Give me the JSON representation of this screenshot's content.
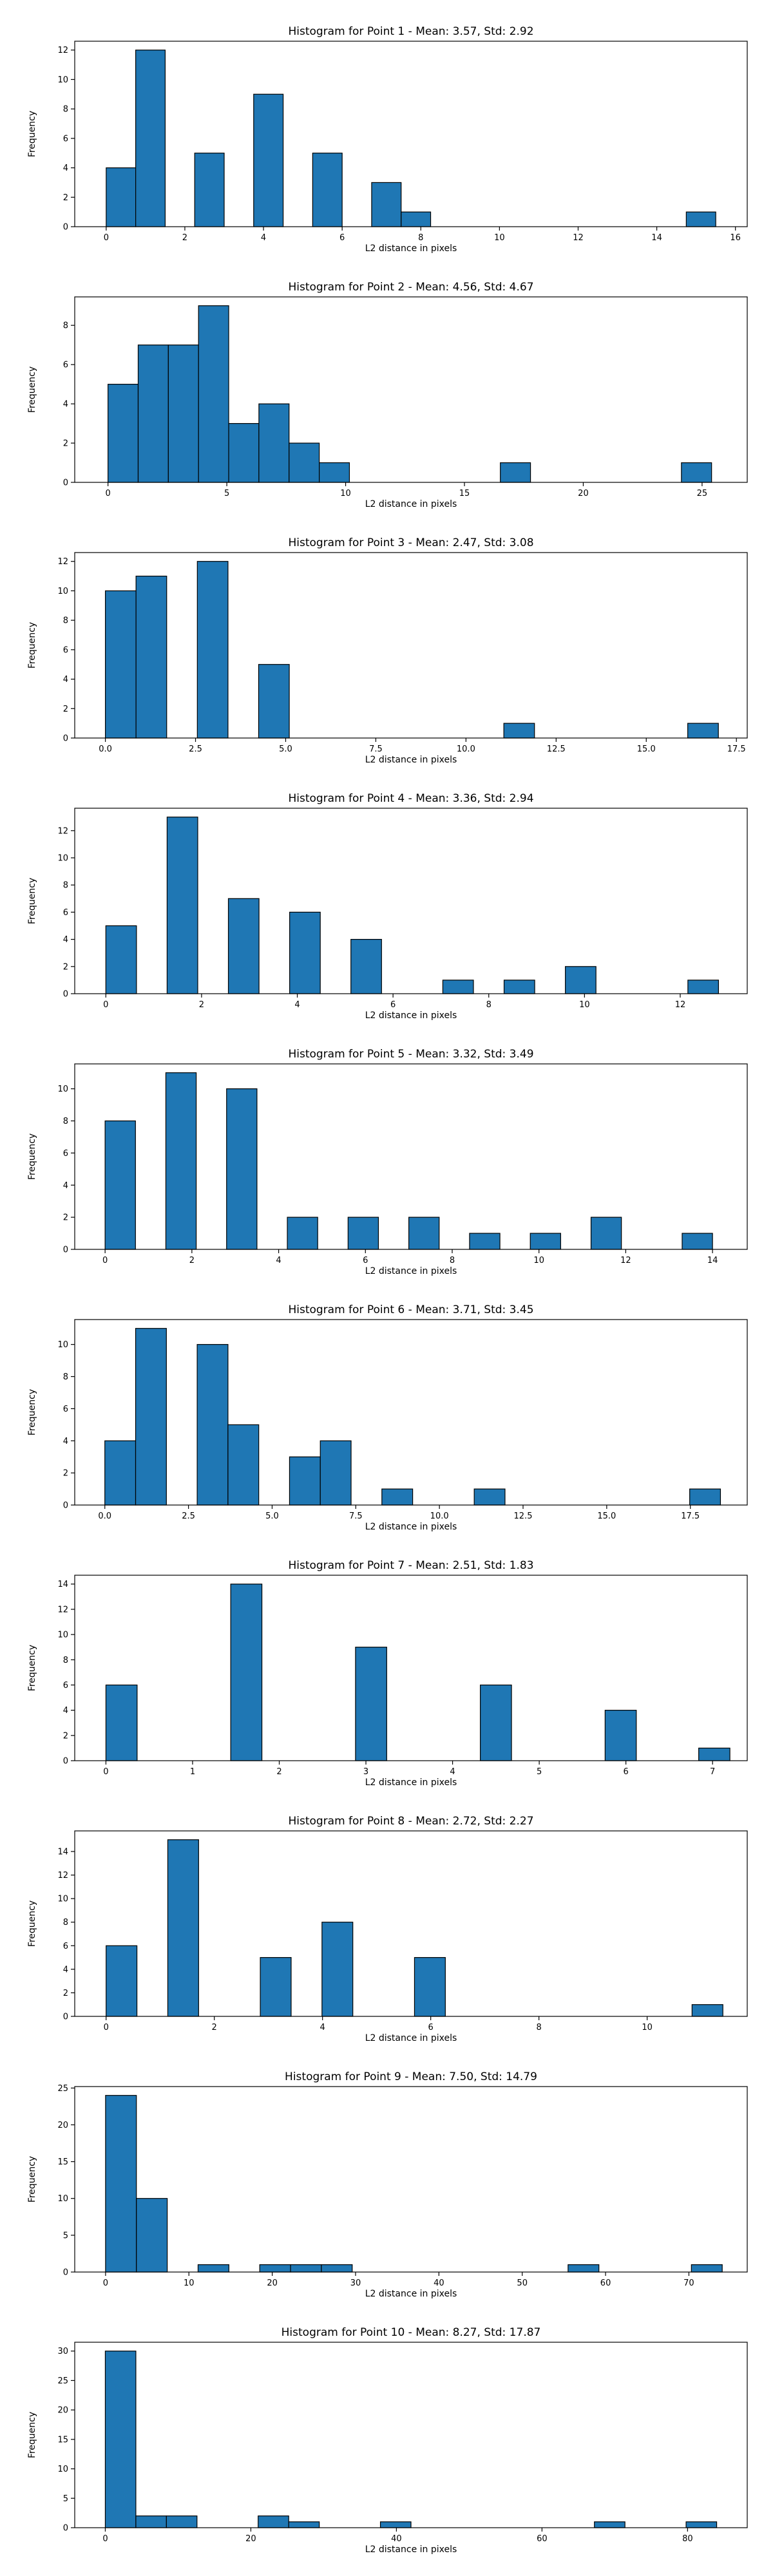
{
  "chart_data": [
    {
      "type": "bar",
      "title": "Histogram for Point 1 - Mean: 3.57, Std: 2.92",
      "xlabel": "L2 distance in pixels",
      "ylabel": "Frequency",
      "xlim": [
        -0.8,
        16.3
      ],
      "ylim": [
        0,
        12.6
      ],
      "bins": [
        [
          0,
          0.75,
          4
        ],
        [
          0.75,
          1.5,
          12
        ],
        [
          2.25,
          3.0,
          5
        ],
        [
          3.75,
          4.5,
          9
        ],
        [
          5.25,
          6.0,
          5
        ],
        [
          6.75,
          7.5,
          3
        ],
        [
          7.5,
          8.25,
          1
        ],
        [
          14.75,
          15.5,
          1
        ]
      ],
      "xticks": [
        0,
        2,
        4,
        6,
        8,
        10,
        12,
        14,
        16
      ],
      "xtick_labels": [
        "0",
        "2",
        "4",
        "6",
        "8",
        "10",
        "12",
        "14",
        "16"
      ],
      "yticks": [
        0,
        2,
        4,
        6,
        8,
        10,
        12
      ],
      "ytick_labels": [
        "0",
        "2",
        "4",
        "6",
        "8",
        "10",
        "12"
      ]
    },
    {
      "type": "bar",
      "title": "Histogram for Point 2 - Mean: 4.56, Std: 4.67",
      "xlabel": "L2 distance in pixels",
      "ylabel": "Frequency",
      "xlim": [
        -1.4,
        26.9
      ],
      "ylim": [
        0,
        9.45
      ],
      "bins": [
        [
          0,
          1.27,
          5
        ],
        [
          1.27,
          2.54,
          7
        ],
        [
          2.54,
          3.81,
          7
        ],
        [
          3.81,
          5.08,
          9
        ],
        [
          5.08,
          6.35,
          3
        ],
        [
          6.35,
          7.62,
          4
        ],
        [
          7.62,
          8.89,
          2
        ],
        [
          8.89,
          10.16,
          1
        ],
        [
          16.51,
          17.78,
          1
        ],
        [
          24.13,
          25.4,
          1
        ]
      ],
      "xticks": [
        0,
        5,
        10,
        15,
        20,
        25
      ],
      "xtick_labels": [
        "0",
        "5",
        "10",
        "15",
        "20",
        "25"
      ],
      "yticks": [
        0,
        2,
        4,
        6,
        8
      ],
      "ytick_labels": [
        "0",
        "2",
        "4",
        "6",
        "8"
      ]
    },
    {
      "type": "bar",
      "title": "Histogram for Point 3 - Mean: 2.47, Std: 3.08",
      "xlabel": "L2 distance in pixels",
      "ylabel": "Frequency",
      "xlim": [
        -0.85,
        17.8
      ],
      "ylim": [
        0,
        12.6
      ],
      "bins": [
        [
          0,
          0.85,
          10
        ],
        [
          0.85,
          1.7,
          11
        ],
        [
          2.55,
          3.4,
          12
        ],
        [
          4.25,
          5.1,
          5
        ],
        [
          11.05,
          11.9,
          1
        ],
        [
          16.15,
          17.0,
          1
        ]
      ],
      "xticks": [
        0,
        2.5,
        5,
        7.5,
        10,
        12.5,
        15,
        17.5
      ],
      "xtick_labels": [
        "0.0",
        "2.5",
        "5.0",
        "7.5",
        "10.0",
        "12.5",
        "15.0",
        "17.5"
      ],
      "yticks": [
        0,
        2,
        4,
        6,
        8,
        10,
        12
      ],
      "ytick_labels": [
        "0",
        "2",
        "4",
        "6",
        "8",
        "10",
        "12"
      ]
    },
    {
      "type": "bar",
      "title": "Histogram for Point 4 - Mean: 3.36, Std: 2.94",
      "xlabel": "L2 distance in pixels",
      "ylabel": "Frequency",
      "xlim": [
        -0.65,
        13.4
      ],
      "ylim": [
        0,
        13.65
      ],
      "bins": [
        [
          0,
          0.64,
          5
        ],
        [
          1.28,
          1.92,
          13
        ],
        [
          2.56,
          3.2,
          7
        ],
        [
          3.84,
          4.48,
          6
        ],
        [
          5.12,
          5.76,
          4
        ],
        [
          7.04,
          7.68,
          1
        ],
        [
          8.32,
          8.96,
          1
        ],
        [
          9.6,
          10.24,
          2
        ],
        [
          12.16,
          12.8,
          1
        ]
      ],
      "xticks": [
        0,
        2,
        4,
        6,
        8,
        10,
        12
      ],
      "xtick_labels": [
        "0",
        "2",
        "4",
        "6",
        "8",
        "10",
        "12"
      ],
      "yticks": [
        0,
        2,
        4,
        6,
        8,
        10,
        12
      ],
      "ytick_labels": [
        "0",
        "2",
        "4",
        "6",
        "8",
        "10",
        "12"
      ]
    },
    {
      "type": "bar",
      "title": "Histogram for Point 5 - Mean: 3.32, Std: 3.49",
      "xlabel": "L2 distance in pixels",
      "ylabel": "Frequency",
      "xlim": [
        -0.7,
        14.8
      ],
      "ylim": [
        0,
        11.55
      ],
      "bins": [
        [
          0,
          0.7,
          8
        ],
        [
          1.4,
          2.1,
          11
        ],
        [
          2.8,
          3.5,
          10
        ],
        [
          4.2,
          4.9,
          2
        ],
        [
          5.6,
          6.3,
          2
        ],
        [
          7.0,
          7.7,
          2
        ],
        [
          8.4,
          9.1,
          1
        ],
        [
          9.8,
          10.5,
          1
        ],
        [
          11.2,
          11.9,
          2
        ],
        [
          13.3,
          14.0,
          1
        ]
      ],
      "xticks": [
        0,
        2,
        4,
        6,
        8,
        10,
        12,
        14
      ],
      "xtick_labels": [
        "0",
        "2",
        "4",
        "6",
        "8",
        "10",
        "12",
        "14"
      ],
      "yticks": [
        0,
        2,
        4,
        6,
        8,
        10
      ],
      "ytick_labels": [
        "0",
        "2",
        "4",
        "6",
        "8",
        "10"
      ]
    },
    {
      "type": "bar",
      "title": "Histogram for Point 6 - Mean: 3.71, Std: 3.45",
      "xlabel": "L2 distance in pixels",
      "ylabel": "Frequency",
      "xlim": [
        -0.9,
        19.2
      ],
      "ylim": [
        0,
        11.55
      ],
      "bins": [
        [
          0,
          0.92,
          4
        ],
        [
          0.92,
          1.84,
          11
        ],
        [
          2.76,
          3.68,
          10
        ],
        [
          3.68,
          4.6,
          5
        ],
        [
          5.52,
          6.44,
          3
        ],
        [
          6.44,
          7.36,
          4
        ],
        [
          8.28,
          9.2,
          1
        ],
        [
          11.04,
          11.96,
          1
        ],
        [
          17.48,
          18.4,
          1
        ]
      ],
      "xticks": [
        0,
        2.5,
        5,
        7.5,
        10,
        12.5,
        15,
        17.5
      ],
      "xtick_labels": [
        "0.0",
        "2.5",
        "5.0",
        "7.5",
        "10.0",
        "12.5",
        "15.0",
        "17.5"
      ],
      "yticks": [
        0,
        2,
        4,
        6,
        8,
        10
      ],
      "ytick_labels": [
        "0",
        "2",
        "4",
        "6",
        "8",
        "10"
      ]
    },
    {
      "type": "bar",
      "title": "Histogram for Point 7 - Mean: 2.51, Std: 1.83",
      "xlabel": "L2 distance in pixels",
      "ylabel": "Frequency",
      "xlim": [
        -0.36,
        7.4
      ],
      "ylim": [
        0,
        14.7
      ],
      "bins": [
        [
          0,
          0.36,
          6
        ],
        [
          1.44,
          1.8,
          14
        ],
        [
          2.88,
          3.24,
          9
        ],
        [
          4.32,
          4.68,
          6
        ],
        [
          5.76,
          6.12,
          4
        ],
        [
          6.84,
          7.2,
          1
        ]
      ],
      "xticks": [
        0,
        1,
        2,
        3,
        4,
        5,
        6,
        7
      ],
      "xtick_labels": [
        "0",
        "1",
        "2",
        "3",
        "4",
        "5",
        "6",
        "7"
      ],
      "yticks": [
        0,
        2,
        4,
        6,
        8,
        10,
        12,
        14
      ],
      "ytick_labels": [
        "0",
        "2",
        "4",
        "6",
        "8",
        "10",
        "12",
        "14"
      ]
    },
    {
      "type": "bar",
      "title": "Histogram for Point 8 - Mean: 2.72, Std: 2.27",
      "xlabel": "L2 distance in pixels",
      "ylabel": "Frequency",
      "xlim": [
        -0.58,
        11.85
      ],
      "ylim": [
        0,
        15.75
      ],
      "bins": [
        [
          0,
          0.57,
          6
        ],
        [
          1.14,
          1.71,
          15
        ],
        [
          2.85,
          3.42,
          5
        ],
        [
          3.99,
          4.56,
          8
        ],
        [
          5.7,
          6.27,
          5
        ],
        [
          10.83,
          11.4,
          1
        ]
      ],
      "xticks": [
        0,
        2,
        4,
        6,
        8,
        10
      ],
      "xtick_labels": [
        "0",
        "2",
        "4",
        "6",
        "8",
        "10"
      ],
      "yticks": [
        0,
        2,
        4,
        6,
        8,
        10,
        12,
        14
      ],
      "ytick_labels": [
        "0",
        "2",
        "4",
        "6",
        "8",
        "10",
        "12",
        "14"
      ]
    },
    {
      "type": "bar",
      "title": "Histogram for Point 9 - Mean: 7.50, Std: 14.79",
      "xlabel": "L2 distance in pixels",
      "ylabel": "Frequency",
      "xlim": [
        -3.7,
        77.0
      ],
      "ylim": [
        0,
        25.2
      ],
      "bins": [
        [
          0,
          3.7,
          24
        ],
        [
          3.7,
          7.4,
          10
        ],
        [
          11.1,
          14.8,
          1
        ],
        [
          18.5,
          22.2,
          1
        ],
        [
          22.2,
          25.9,
          1
        ],
        [
          25.9,
          29.6,
          1
        ],
        [
          55.5,
          59.2,
          1
        ],
        [
          70.3,
          74.0,
          1
        ]
      ],
      "xticks": [
        0,
        10,
        20,
        30,
        40,
        50,
        60,
        70
      ],
      "xtick_labels": [
        "0",
        "10",
        "20",
        "30",
        "40",
        "50",
        "60",
        "70"
      ],
      "yticks": [
        0,
        5,
        10,
        15,
        20,
        25
      ],
      "ytick_labels": [
        "0",
        "5",
        "10",
        "15",
        "20",
        "25"
      ]
    },
    {
      "type": "bar",
      "title": "Histogram for Point 10 - Mean: 8.27, Std: 17.87",
      "xlabel": "L2 distance in pixels",
      "ylabel": "Frequency",
      "xlim": [
        -4.2,
        88.2
      ],
      "ylim": [
        0,
        31.5
      ],
      "bins": [
        [
          0,
          4.2,
          30
        ],
        [
          4.2,
          8.4,
          2
        ],
        [
          8.4,
          12.6,
          2
        ],
        [
          21.0,
          25.2,
          2
        ],
        [
          25.2,
          29.4,
          1
        ],
        [
          37.8,
          42.0,
          1
        ],
        [
          67.2,
          71.4,
          1
        ],
        [
          79.8,
          84.0,
          1
        ]
      ],
      "xticks": [
        0,
        20,
        40,
        60,
        80
      ],
      "xtick_labels": [
        "0",
        "20",
        "40",
        "60",
        "80"
      ],
      "yticks": [
        0,
        5,
        10,
        15,
        20,
        25,
        30
      ],
      "ytick_labels": [
        "0",
        "5",
        "10",
        "15",
        "20",
        "25",
        "30"
      ]
    }
  ]
}
